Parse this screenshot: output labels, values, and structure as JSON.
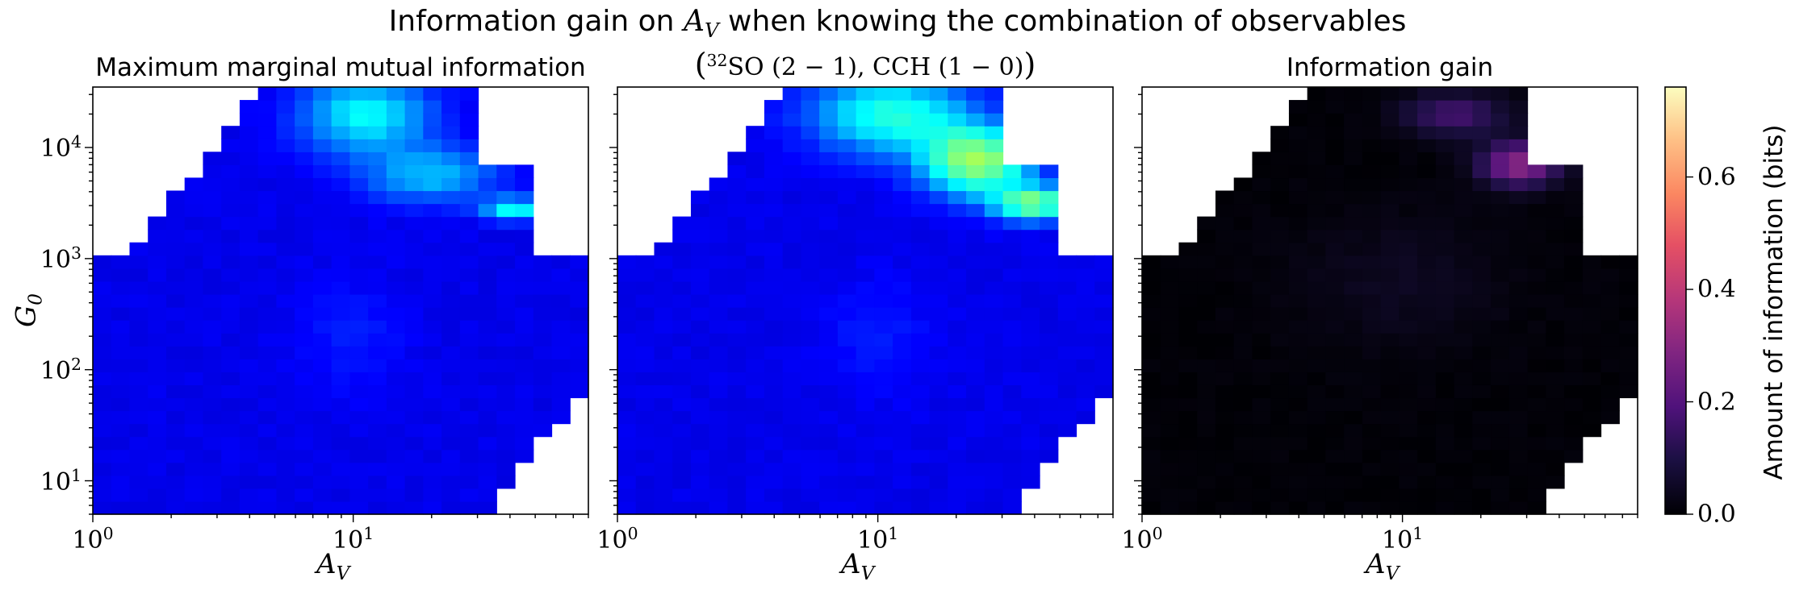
{
  "suptitle": {
    "prefix": "Information gain on ",
    "var": "A",
    "var_sub": "V",
    "suffix": " when knowing the combination of observables"
  },
  "panels": [
    {
      "title": "Maximum marginal mutual information",
      "cmap": "jet-blue"
    },
    {
      "formula_pre": "(",
      "formula_sup": "32",
      "formula_main": "SO (2 − 1), CCH (1 − 0)",
      "formula_post": ")",
      "cmap": "jet-blue"
    },
    {
      "title": "Information gain",
      "cmap": "magma"
    }
  ],
  "axes": {
    "xlabel": {
      "main": "A",
      "sub": "V"
    },
    "ylabel": {
      "main": "G",
      "sub": "0"
    },
    "x_ticks": [
      {
        "base": "10",
        "exp": "0",
        "value": 1
      },
      {
        "base": "10",
        "exp": "1",
        "value": 10
      }
    ],
    "y_ticks": [
      {
        "base": "10",
        "exp": "1",
        "value": 10
      },
      {
        "base": "10",
        "exp": "2",
        "value": 100
      },
      {
        "base": "10",
        "exp": "3",
        "value": 1000
      },
      {
        "base": "10",
        "exp": "4",
        "value": 10000
      }
    ]
  },
  "colorbar": {
    "label": "Amount of information (bits)",
    "ticks": [
      "0.0",
      "0.2",
      "0.4",
      "0.6"
    ]
  },
  "chart_data": {
    "type": "heatmap",
    "x_scale": "log",
    "y_scale": "log",
    "xlim": [
      1,
      80
    ],
    "ylim": [
      5,
      35000
    ],
    "clim": [
      0,
      0.76
    ],
    "panels": [
      "max_marginal_mi",
      "combination_mi",
      "information_gain"
    ],
    "hotspots": [
      {
        "panel": "max_marginal_mi",
        "x": 10,
        "y": 20000,
        "value": 0.26
      },
      {
        "panel": "max_marginal_mi",
        "x": 20,
        "y": 6000,
        "value": 0.24
      },
      {
        "panel": "max_marginal_mi",
        "x": 42,
        "y": 2800,
        "value": 0.3
      },
      {
        "panel": "combination_mi",
        "x": 24,
        "y": 7500,
        "value": 0.4
      },
      {
        "panel": "combination_mi",
        "x": 40,
        "y": 3000,
        "value": 0.44
      },
      {
        "panel": "information_gain",
        "x": 30,
        "y": 7000,
        "value": 0.3
      },
      {
        "panel": "information_gain",
        "x": 18,
        "y": 20000,
        "value": 0.2
      }
    ]
  }
}
